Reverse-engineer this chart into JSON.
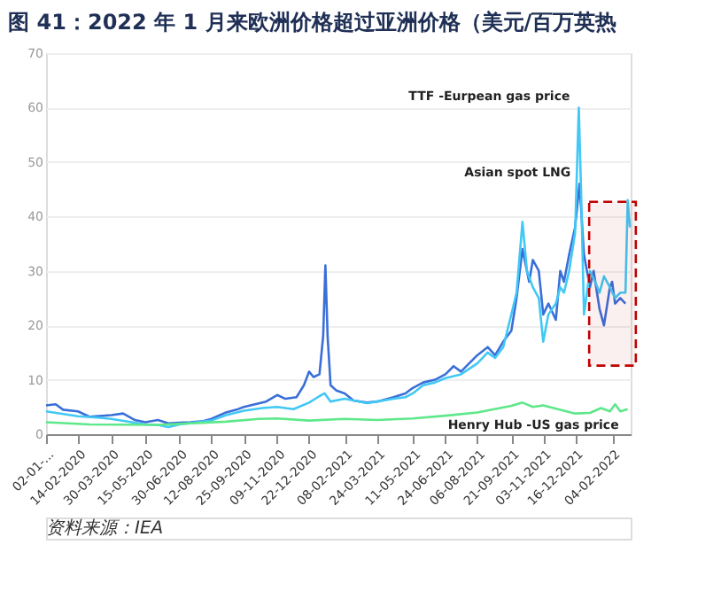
{
  "chart_data": {
    "type": "line",
    "title": "图 41：2022 年 1 月来欧洲价格超过亚洲价格（美元/百万英热",
    "annotations": [
      "资料来源：IEA"
    ],
    "grid": "y",
    "marker": "none",
    "line_style": "solid",
    "ylim": [
      0,
      70
    ],
    "yticks": [
      0,
      10,
      20,
      30,
      40,
      50,
      60,
      70
    ],
    "xlim": [
      "2020-01-02",
      "2022-03-01"
    ],
    "xticks": [
      {
        "value": "2020-01-02",
        "label": "02-01-..."
      },
      {
        "value": "2020-02-14",
        "label": "14-02-2020"
      },
      {
        "value": "2020-03-30",
        "label": "30-03-2020"
      },
      {
        "value": "2020-05-15",
        "label": "15-05-2020"
      },
      {
        "value": "2020-06-30",
        "label": "30-06-2020"
      },
      {
        "value": "2020-08-12",
        "label": "12-08-2020"
      },
      {
        "value": "2020-09-25",
        "label": "25-09-2020"
      },
      {
        "value": "2020-11-09",
        "label": "09-11-2020"
      },
      {
        "value": "2020-12-22",
        "label": "22-12-2020"
      },
      {
        "value": "2021-02-08",
        "label": "08-02-2021"
      },
      {
        "value": "2021-03-24",
        "label": "24-03-2021"
      },
      {
        "value": "2021-05-11",
        "label": "11-05-2021"
      },
      {
        "value": "2021-06-24",
        "label": "24-06-2021"
      },
      {
        "value": "2021-08-06",
        "label": "06-08-2021"
      },
      {
        "value": "2021-09-21",
        "label": "21-09-2021"
      },
      {
        "value": "2021-11-03",
        "label": "03-11-2021"
      },
      {
        "value": "2021-12-16",
        "label": "16-12-2021"
      },
      {
        "value": "2022-02-04",
        "label": "04-02-2022"
      }
    ],
    "bands": [
      {
        "axis": "x",
        "from": "2022-01-04",
        "to": "2022-03-08",
        "color": "#c00000"
      }
    ],
    "series": [
      {
        "name": "Asian spot LNG",
        "color": "#3a6fd8",
        "x": [
          "2020-01-02",
          "2020-01-15",
          "2020-01-25",
          "2020-02-14",
          "2020-03-01",
          "2020-03-30",
          "2020-04-15",
          "2020-05-01",
          "2020-05-15",
          "2020-06-01",
          "2020-06-15",
          "2020-06-30",
          "2020-07-15",
          "2020-08-01",
          "2020-08-12",
          "2020-09-01",
          "2020-09-15",
          "2020-09-25",
          "2020-10-10",
          "2020-10-25",
          "2020-11-09",
          "2020-11-20",
          "2020-12-05",
          "2020-12-15",
          "2020-12-22",
          "2020-12-28",
          "2021-01-05",
          "2021-01-10",
          "2021-01-13",
          "2021-01-16",
          "2021-01-20",
          "2021-01-28",
          "2021-02-08",
          "2021-02-20",
          "2021-03-10",
          "2021-03-24",
          "2021-04-15",
          "2021-05-01",
          "2021-05-11",
          "2021-05-25",
          "2021-06-10",
          "2021-06-24",
          "2021-07-05",
          "2021-07-15",
          "2021-08-06",
          "2021-08-20",
          "2021-08-30",
          "2021-09-10",
          "2021-09-21",
          "2021-09-28",
          "2021-10-06",
          "2021-10-15",
          "2021-10-20",
          "2021-10-28",
          "2021-11-03",
          "2021-11-10",
          "2021-11-20",
          "2021-11-26",
          "2021-12-01",
          "2021-12-08",
          "2021-12-16",
          "2021-12-22",
          "2021-12-28",
          "2022-01-05",
          "2022-01-10",
          "2022-01-18",
          "2022-01-24",
          "2022-02-01",
          "2022-02-04",
          "2022-02-08",
          "2022-02-15",
          "2022-02-22"
        ],
        "values": [
          5.3,
          5.5,
          4.5,
          4.2,
          3.2,
          3.5,
          3.8,
          2.6,
          2.2,
          2.6,
          2.0,
          2.1,
          2.2,
          2.4,
          2.8,
          4.0,
          4.5,
          5.0,
          5.5,
          6.0,
          7.2,
          6.5,
          6.8,
          9,
          11.5,
          10.5,
          11,
          18,
          31,
          18,
          9,
          8,
          7.5,
          6.2,
          5.8,
          6,
          6.8,
          7.5,
          8.5,
          9.5,
          10,
          11,
          12.5,
          11.5,
          14.5,
          16,
          14.5,
          17,
          19,
          25,
          34,
          28,
          32,
          30,
          22,
          24,
          21,
          30,
          28,
          33,
          38,
          46,
          33,
          27,
          30,
          23,
          20,
          27,
          28,
          24,
          25,
          24
        ]
      },
      {
        "name": "TTF -Eurpean gas price",
        "color": "#41c8f5",
        "x": [
          "2020-01-02",
          "2020-02-14",
          "2020-03-15",
          "2020-03-30",
          "2020-05-15",
          "2020-06-01",
          "2020-06-15",
          "2020-06-30",
          "2020-08-12",
          "2020-09-01",
          "2020-09-25",
          "2020-10-20",
          "2020-11-09",
          "2020-12-01",
          "2020-12-22",
          "2021-01-05",
          "2021-01-12",
          "2021-01-20",
          "2021-02-08",
          "2021-02-20",
          "2021-03-10",
          "2021-03-24",
          "2021-04-15",
          "2021-05-01",
          "2021-05-11",
          "2021-05-25",
          "2021-06-10",
          "2021-06-24",
          "2021-07-15",
          "2021-08-06",
          "2021-08-20",
          "2021-08-30",
          "2021-09-10",
          "2021-09-21",
          "2021-09-28",
          "2021-10-06",
          "2021-10-12",
          "2021-10-20",
          "2021-10-28",
          "2021-11-03",
          "2021-11-10",
          "2021-11-20",
          "2021-11-26",
          "2021-12-01",
          "2021-12-08",
          "2021-12-16",
          "2021-12-21",
          "2021-12-24",
          "2021-12-28",
          "2022-01-05",
          "2022-01-12",
          "2022-01-18",
          "2022-01-24",
          "2022-02-01",
          "2022-02-08",
          "2022-02-15",
          "2022-02-22",
          "2022-02-25",
          "2022-02-28"
        ],
        "values": [
          4.2,
          3.3,
          3.0,
          2.8,
          1.8,
          1.7,
          1.3,
          1.8,
          2.5,
          3.5,
          4.3,
          4.8,
          5.0,
          4.6,
          5.8,
          7.0,
          7.5,
          6.0,
          6.5,
          6.2,
          5.7,
          6.0,
          6.5,
          6.8,
          7.5,
          9,
          9.5,
          10.3,
          11,
          13,
          15,
          14,
          16,
          22,
          26,
          39,
          30,
          27,
          25,
          17,
          22,
          24,
          27,
          26,
          30,
          37,
          60,
          45,
          22,
          30,
          28,
          26,
          29,
          27,
          25,
          26,
          26,
          43,
          38
        ]
      },
      {
        "name": "Henry Hub -US gas price",
        "color": "#5de88a",
        "x": [
          "2020-01-02",
          "2020-03-01",
          "2020-06-01",
          "2020-09-01",
          "2020-10-15",
          "2020-11-09",
          "2020-12-22",
          "2021-02-08",
          "2021-03-24",
          "2021-05-11",
          "2021-06-24",
          "2021-08-06",
          "2021-09-21",
          "2021-10-06",
          "2021-10-20",
          "2021-11-03",
          "2021-12-16",
          "2022-01-05",
          "2022-01-20",
          "2022-02-01",
          "2022-02-08",
          "2022-02-15",
          "2022-02-25"
        ],
        "values": [
          2.2,
          1.8,
          1.7,
          2.3,
          2.8,
          2.9,
          2.5,
          2.8,
          2.6,
          2.9,
          3.4,
          4.0,
          5.2,
          5.8,
          5.0,
          5.3,
          3.8,
          3.9,
          4.8,
          4.2,
          5.5,
          4.2,
          4.6
        ]
      }
    ]
  }
}
